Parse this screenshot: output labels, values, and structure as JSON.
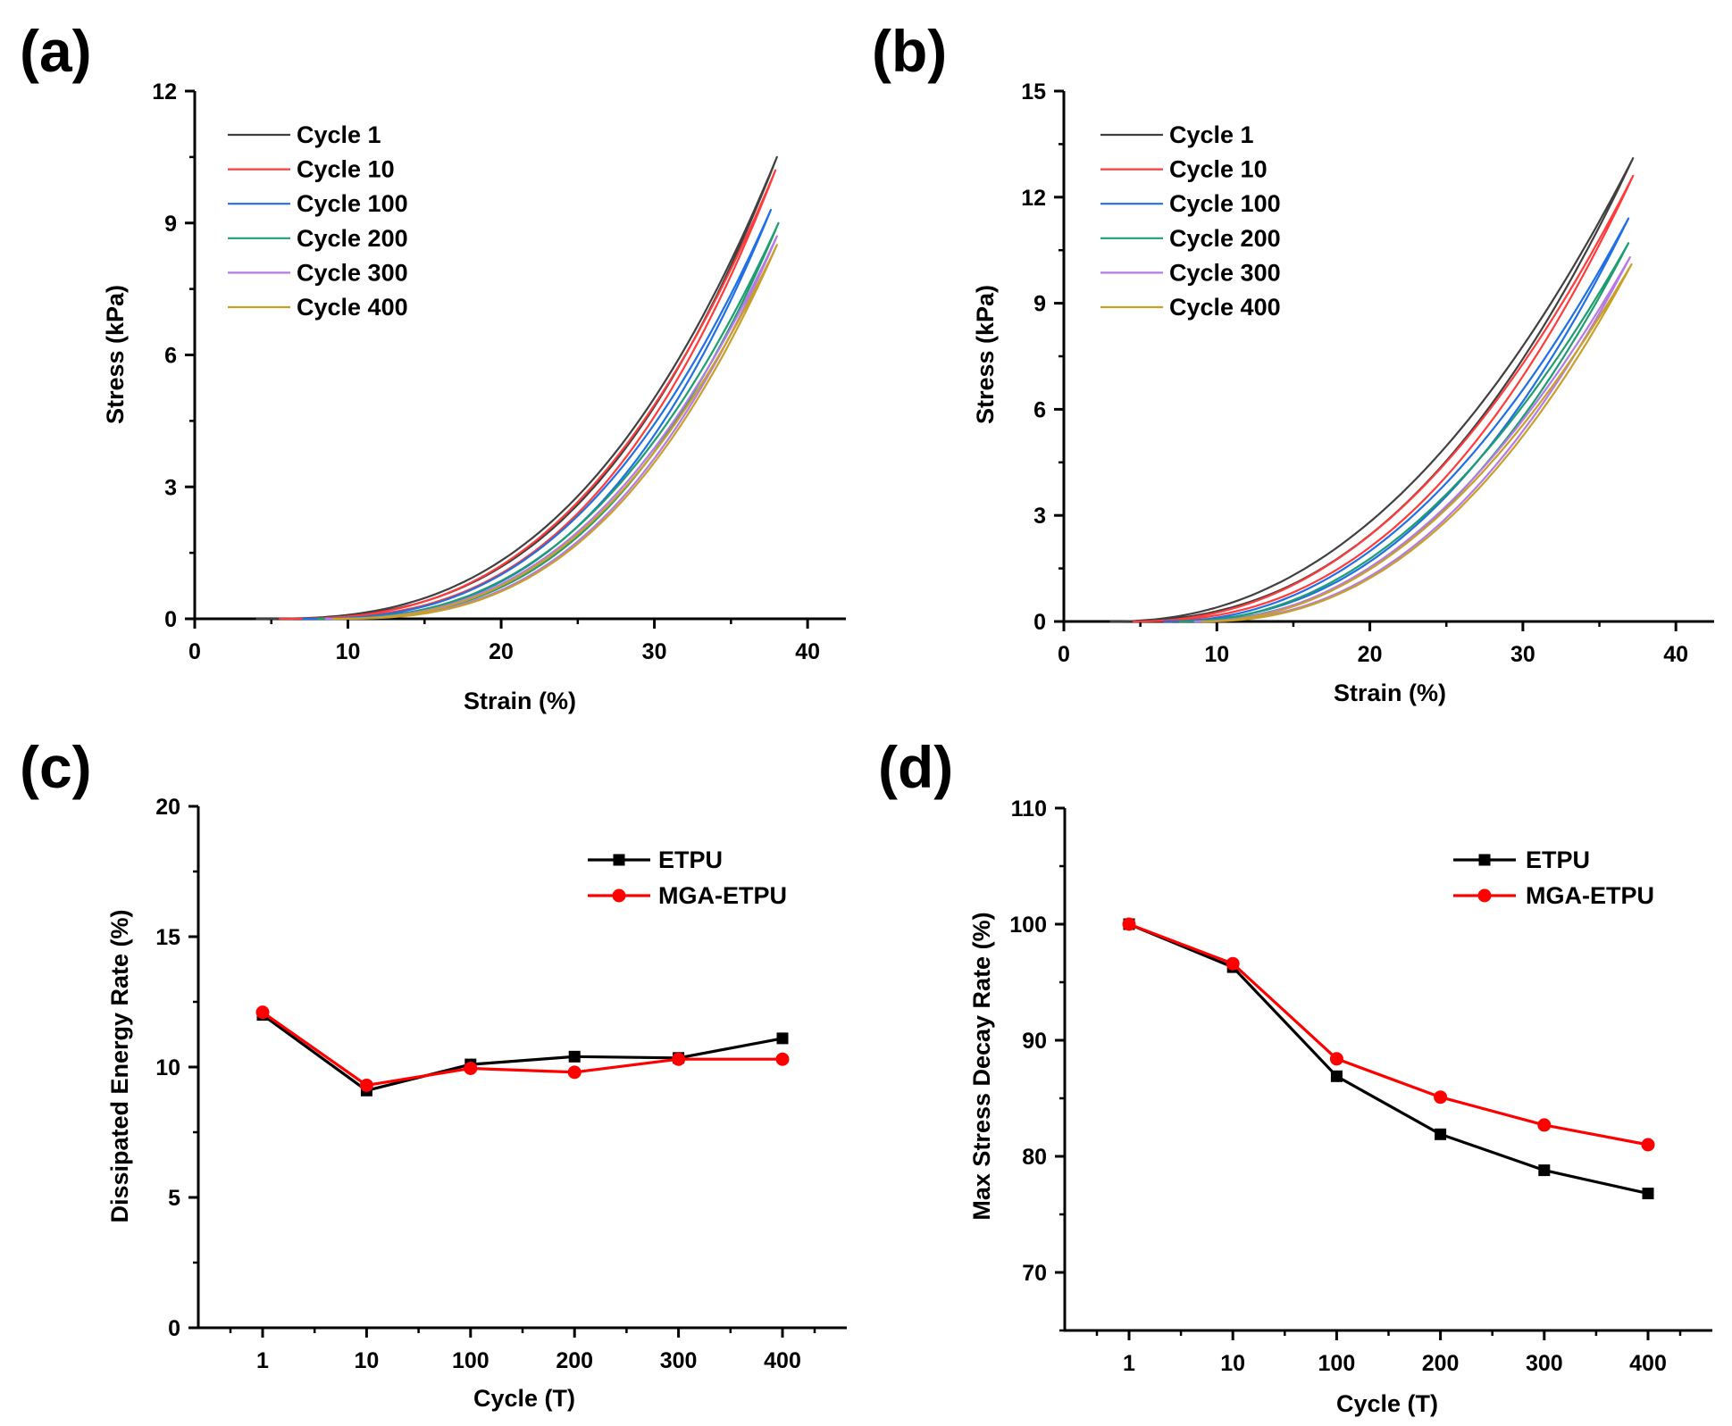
{
  "chart_data": [
    {
      "panel": "(a)",
      "type": "line",
      "title": "",
      "xlabel": "Strain (%)",
      "ylabel": "Stress (kPa)",
      "xlim": [
        0,
        42.5
      ],
      "ylim": [
        0,
        12
      ],
      "xticks": [
        "0",
        "10",
        "20",
        "30",
        "40"
      ],
      "yticks": [
        "0",
        "3",
        "6",
        "9",
        "12"
      ],
      "legend_position": "top-left",
      "series": [
        {
          "name": "Cycle 1",
          "color": "#404040",
          "x0": 4.0,
          "xmax": 38.0,
          "ymax": 10.5,
          "p_load": 2.75,
          "p_unload": 2.9
        },
        {
          "name": "Cycle 10",
          "color": "#ff3b3b",
          "x0": 5.5,
          "xmax": 37.9,
          "ymax": 10.2,
          "p_load": 2.65,
          "p_unload": 2.85
        },
        {
          "name": "Cycle 100",
          "color": "#1f6fe5",
          "x0": 7.0,
          "xmax": 37.6,
          "ymax": 9.3,
          "p_load": 2.6,
          "p_unload": 2.8
        },
        {
          "name": "Cycle 200",
          "color": "#1e9e6e",
          "x0": 8.0,
          "xmax": 38.1,
          "ymax": 9.0,
          "p_load": 2.55,
          "p_unload": 2.75
        },
        {
          "name": "Cycle 300",
          "color": "#b57ae6",
          "x0": 8.5,
          "xmax": 38.0,
          "ymax": 8.7,
          "p_load": 2.55,
          "p_unload": 2.75
        },
        {
          "name": "Cycle 400",
          "color": "#c8a028",
          "x0": 9.0,
          "xmax": 38.0,
          "ymax": 8.5,
          "p_load": 2.5,
          "p_unload": 2.7
        }
      ]
    },
    {
      "panel": "(b)",
      "type": "line",
      "title": "",
      "xlabel": "Strain (%)",
      "ylabel": "Stress (kPa)",
      "xlim": [
        0,
        42.5
      ],
      "ylim": [
        0,
        15
      ],
      "xticks": [
        "0",
        "10",
        "20",
        "30",
        "40"
      ],
      "yticks": [
        "0",
        "3",
        "6",
        "9",
        "12",
        "15"
      ],
      "legend_position": "top-left",
      "series": [
        {
          "name": "Cycle 1",
          "color": "#404040",
          "x0": 3.0,
          "xmax": 37.2,
          "ymax": 13.1,
          "p_load": 2.2,
          "p_unload": 2.4
        },
        {
          "name": "Cycle 10",
          "color": "#ff3b3b",
          "x0": 4.5,
          "xmax": 37.2,
          "ymax": 12.6,
          "p_load": 2.2,
          "p_unload": 2.4
        },
        {
          "name": "Cycle 100",
          "color": "#1f6fe5",
          "x0": 6.5,
          "xmax": 36.9,
          "ymax": 11.4,
          "p_load": 2.15,
          "p_unload": 2.35
        },
        {
          "name": "Cycle 200",
          "color": "#1e9e6e",
          "x0": 7.5,
          "xmax": 36.9,
          "ymax": 10.7,
          "p_load": 2.1,
          "p_unload": 2.3
        },
        {
          "name": "Cycle 300",
          "color": "#b57ae6",
          "x0": 8.5,
          "xmax": 37.0,
          "ymax": 10.3,
          "p_load": 2.1,
          "p_unload": 2.3
        },
        {
          "name": "Cycle 400",
          "color": "#c8a028",
          "x0": 9.0,
          "xmax": 37.1,
          "ymax": 10.1,
          "p_load": 2.05,
          "p_unload": 2.25
        }
      ]
    },
    {
      "panel": "(c)",
      "type": "line",
      "title": "",
      "xlabel": "Cycle (T)",
      "ylabel": "Dissipated Energy Rate (%)",
      "categories": [
        "1",
        "10",
        "100",
        "200",
        "300",
        "400"
      ],
      "ylim": [
        0,
        20
      ],
      "yticks": [
        "0",
        "5",
        "10",
        "15",
        "20"
      ],
      "legend_position": "top-right",
      "series": [
        {
          "name": "ETPU",
          "color": "#000000",
          "marker": "square",
          "values": [
            12.0,
            9.1,
            10.1,
            10.4,
            10.35,
            11.1
          ]
        },
        {
          "name": "MGA-ETPU",
          "color": "#ff0000",
          "marker": "circle",
          "values": [
            12.1,
            9.3,
            9.95,
            9.8,
            10.3,
            10.3
          ]
        }
      ]
    },
    {
      "panel": "(d)",
      "type": "line",
      "title": "",
      "xlabel": "Cycle (T)",
      "ylabel": "Max Stress Decay Rate (%)",
      "categories": [
        "1",
        "10",
        "100",
        "200",
        "300",
        "400"
      ],
      "ylim": [
        65,
        110
      ],
      "yticks": [
        "70",
        "80",
        "90",
        "100",
        "110"
      ],
      "legend_position": "top-right",
      "series": [
        {
          "name": "ETPU",
          "color": "#000000",
          "marker": "square",
          "values": [
            100,
            96.3,
            86.9,
            81.9,
            78.8,
            76.8
          ]
        },
        {
          "name": "MGA-ETPU",
          "color": "#ff0000",
          "marker": "circle",
          "values": [
            100,
            96.6,
            88.4,
            85.1,
            82.7,
            81.0
          ]
        }
      ]
    }
  ]
}
